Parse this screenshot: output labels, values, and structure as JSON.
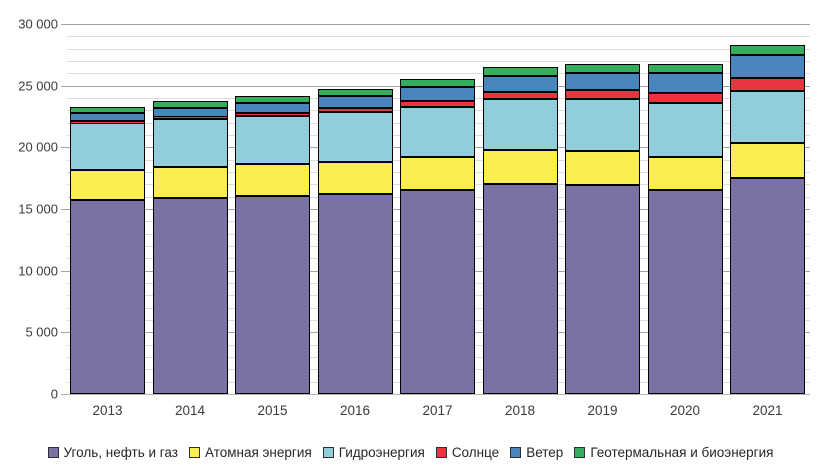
{
  "chart_data": {
    "type": "bar",
    "stacked": true,
    "title": "",
    "xlabel": "",
    "ylabel": "",
    "grid": "horizontal",
    "legend_position": "bottom",
    "ylim": [
      0,
      30000
    ],
    "y_tick_step": 5000,
    "y_minor_step": 1000,
    "y_tick_labels": [
      "0",
      "5 000",
      "10 000",
      "15 000",
      "20 000",
      "25 000",
      "30 000"
    ],
    "categories": [
      "2013",
      "2014",
      "2015",
      "2016",
      "2017",
      "2018",
      "2019",
      "2020",
      "2021"
    ],
    "series": [
      {
        "name": "Уголь, нефть и газ",
        "color": "#7B71A4",
        "values": [
          15710,
          15860,
          16070,
          16210,
          16580,
          17050,
          16915,
          16570,
          17540
        ]
      },
      {
        "name": "Атомная энергия",
        "color": "#F9ED51",
        "values": [
          2480,
          2535,
          2570,
          2610,
          2640,
          2700,
          2790,
          2675,
          2775
        ]
      },
      {
        "name": "Гидроэнергия",
        "color": "#92CDDC",
        "values": [
          3790,
          3895,
          3885,
          4020,
          4070,
          4190,
          4220,
          4345,
          4275
        ]
      },
      {
        "name": "Солнце",
        "color": "#EA3440",
        "values": [
          140,
          190,
          255,
          330,
          445,
          575,
          705,
          855,
          1050
        ]
      },
      {
        "name": "Ветер",
        "color": "#4A85BE",
        "values": [
          645,
          715,
          830,
          955,
          1135,
          1270,
          1420,
          1585,
          1850
        ]
      },
      {
        "name": "Геотермальная и биоэнергия",
        "color": "#34AE5D",
        "values": [
          545,
          580,
          585,
          635,
          660,
          690,
          715,
          745,
          770
        ]
      }
    ],
    "totals": [
      23310,
      23775,
      24195,
      24760,
      25530,
      26475,
      26765,
      26775,
      28260
    ]
  }
}
